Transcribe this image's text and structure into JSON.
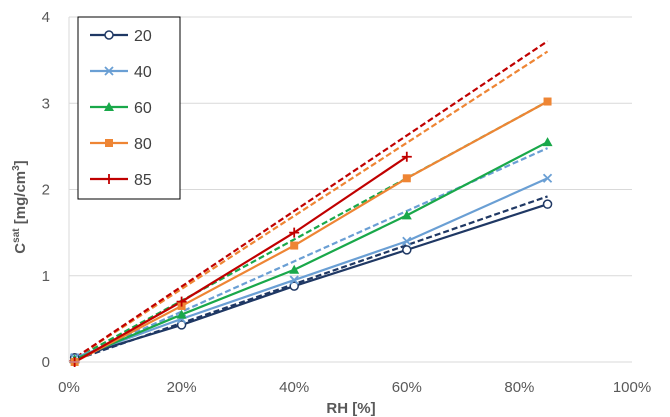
{
  "chart_data": {
    "type": "line",
    "xlabel": "RH [%]",
    "ylabel": {
      "main": "C",
      "superscript": "sat",
      "unit": " [mg/cm",
      "unit_sup": "3",
      "unit_end": "]"
    },
    "xlim": [
      0,
      100
    ],
    "ylim": [
      0,
      4
    ],
    "x_ticks": [
      "0%",
      "20%",
      "40%",
      "60%",
      "80%",
      "100%"
    ],
    "y_ticks": [
      "0",
      "1",
      "2",
      "3",
      "4"
    ],
    "grid": "horizontal",
    "legend_position": "top-left",
    "series": [
      {
        "name": "20",
        "color": "#1f3864",
        "marker": "circle",
        "x": [
          1,
          20,
          40,
          60,
          85
        ],
        "y": [
          0.05,
          0.43,
          0.88,
          1.3,
          1.83
        ],
        "fit": {
          "x": [
            0,
            85
          ],
          "y": [
            0.0,
            1.92
          ]
        }
      },
      {
        "name": "40",
        "color": "#6a9fd4",
        "marker": "x",
        "x": [
          1,
          20,
          40,
          60,
          85
        ],
        "y": [
          0.05,
          0.5,
          0.95,
          1.4,
          2.13
        ],
        "fit": {
          "x": [
            0,
            85
          ],
          "y": [
            0.0,
            2.48
          ]
        }
      },
      {
        "name": "60",
        "color": "#19a84a",
        "marker": "triangle",
        "x": [
          1,
          20,
          40,
          60,
          85
        ],
        "y": [
          0.03,
          0.55,
          1.07,
          1.7,
          2.55
        ],
        "fit": {
          "x": [
            0,
            85
          ],
          "y": [
            0.0,
            3.02
          ]
        }
      },
      {
        "name": "80",
        "color": "#ee8534",
        "marker": "square",
        "x": [
          1,
          20,
          40,
          60,
          85
        ],
        "y": [
          0.0,
          0.65,
          1.35,
          2.13,
          3.02
        ],
        "fit": {
          "x": [
            0,
            85
          ],
          "y": [
            0.0,
            3.6
          ]
        }
      },
      {
        "name": "85",
        "color": "#c00000",
        "marker": "plus",
        "x": [
          1,
          20,
          40,
          60
        ],
        "y": [
          0.0,
          0.7,
          1.5,
          2.38
        ],
        "fit": {
          "x": [
            0,
            85
          ],
          "y": [
            0.0,
            3.72
          ]
        }
      }
    ]
  }
}
